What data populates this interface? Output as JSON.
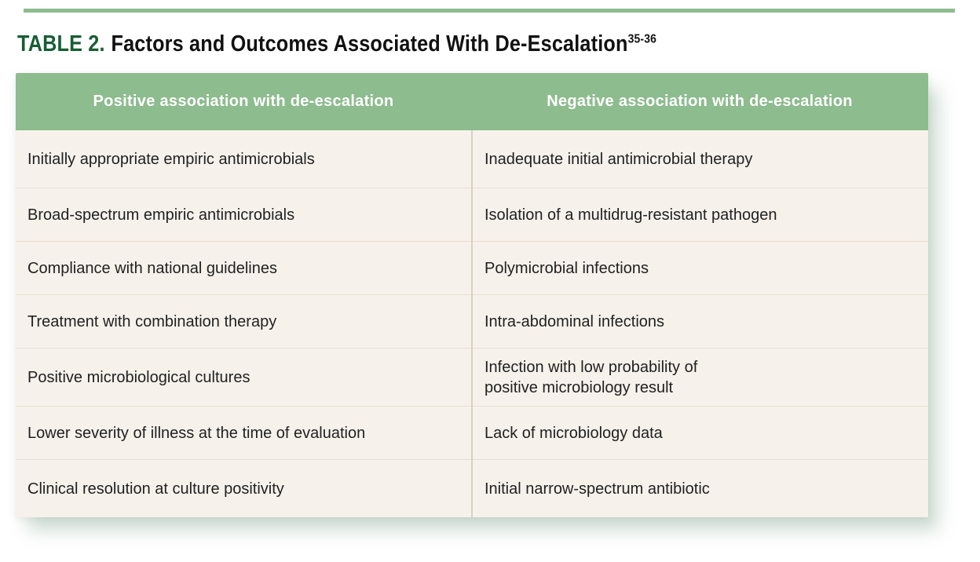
{
  "page": {
    "background_color": "#ffffff",
    "accent_rule_color": "#8dbc8e"
  },
  "title": {
    "label": "TABLE 2.",
    "label_color": "#175e33",
    "text": "Factors and Outcomes Associated With De-Escalation",
    "superscript": "35-36"
  },
  "table": {
    "header": {
      "background_color": "#8dbc8e",
      "text_color": "#ffffff",
      "columns": [
        "Positive association with de-escalation",
        "Negative association with de-escalation"
      ]
    },
    "body": {
      "background_color": "#f7f1eb",
      "separator_color": "#e7dfd4",
      "divider_color": "#d8d0c3",
      "text_color": "#212121",
      "rows": [
        {
          "positive": "Initially appropriate empiric antimicrobials",
          "negative": "Inadequate initial antimicrobial therapy"
        },
        {
          "positive": "Broad-spectrum empiric antimicrobials",
          "negative": "Isolation of a multidrug-resistant pathogen"
        },
        {
          "positive": "Compliance with national guidelines",
          "negative": "Polymicrobial infections"
        },
        {
          "positive": "Treatment with combination therapy",
          "negative": "Intra-abdominal infections"
        },
        {
          "positive": "Positive microbiological cultures",
          "negative": "Infection with low probability of\npositive microbiology result"
        },
        {
          "positive": "Lower severity of illness at the time of evaluation",
          "negative": "Lack of microbiology data"
        },
        {
          "positive": "Clinical resolution at culture positivity",
          "negative": "Initial narrow-spectrum antibiotic"
        }
      ]
    }
  }
}
